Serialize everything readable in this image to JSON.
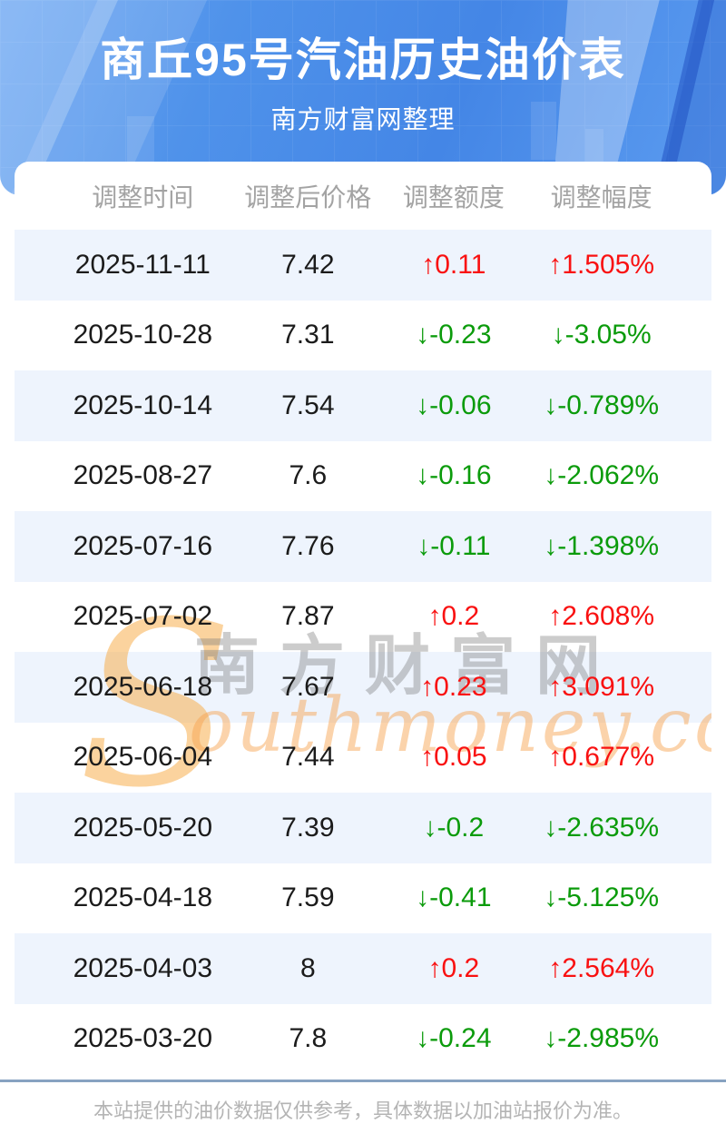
{
  "header": {
    "title": "商丘95号汽油历史油价表",
    "subtitle": "南方财富网整理"
  },
  "table": {
    "columns": [
      "调整时间",
      "调整后价格",
      "调整额度",
      "调整幅度"
    ],
    "rows": [
      {
        "date": "2025-11-11",
        "price": "7.42",
        "change": "↑0.11",
        "pct": "↑1.505%",
        "direction": "up"
      },
      {
        "date": "2025-10-28",
        "price": "7.31",
        "change": "↓-0.23",
        "pct": "↓-3.05%",
        "direction": "down"
      },
      {
        "date": "2025-10-14",
        "price": "7.54",
        "change": "↓-0.06",
        "pct": "↓-0.789%",
        "direction": "down"
      },
      {
        "date": "2025-08-27",
        "price": "7.6",
        "change": "↓-0.16",
        "pct": "↓-2.062%",
        "direction": "down"
      },
      {
        "date": "2025-07-16",
        "price": "7.76",
        "change": "↓-0.11",
        "pct": "↓-1.398%",
        "direction": "down"
      },
      {
        "date": "2025-07-02",
        "price": "7.87",
        "change": "↑0.2",
        "pct": "↑2.608%",
        "direction": "up"
      },
      {
        "date": "2025-06-18",
        "price": "7.67",
        "change": "↑0.23",
        "pct": "↑3.091%",
        "direction": "up"
      },
      {
        "date": "2025-06-04",
        "price": "7.44",
        "change": "↑0.05",
        "pct": "↑0.677%",
        "direction": "up"
      },
      {
        "date": "2025-05-20",
        "price": "7.39",
        "change": "↓-0.2",
        "pct": "↓-2.635%",
        "direction": "down"
      },
      {
        "date": "2025-04-18",
        "price": "7.59",
        "change": "↓-0.41",
        "pct": "↓-5.125%",
        "direction": "down"
      },
      {
        "date": "2025-04-03",
        "price": "8",
        "change": "↑0.2",
        "pct": "↑2.564%",
        "direction": "up"
      },
      {
        "date": "2025-03-20",
        "price": "7.8",
        "change": "↓-0.24",
        "pct": "↓-2.985%",
        "direction": "down"
      }
    ]
  },
  "watermark": {
    "initial": "S",
    "cn": "南方财富网",
    "en": "outhmoney.com"
  },
  "footer": {
    "note": "本站提供的油价数据仅供参考，具体数据以加油站报价为准。"
  },
  "colors": {
    "up": "#f91111",
    "down": "#0b9b0b",
    "banner_blue": "#4a8ce8",
    "stripe": "#eef4fd",
    "divider": "#87a2c1"
  }
}
